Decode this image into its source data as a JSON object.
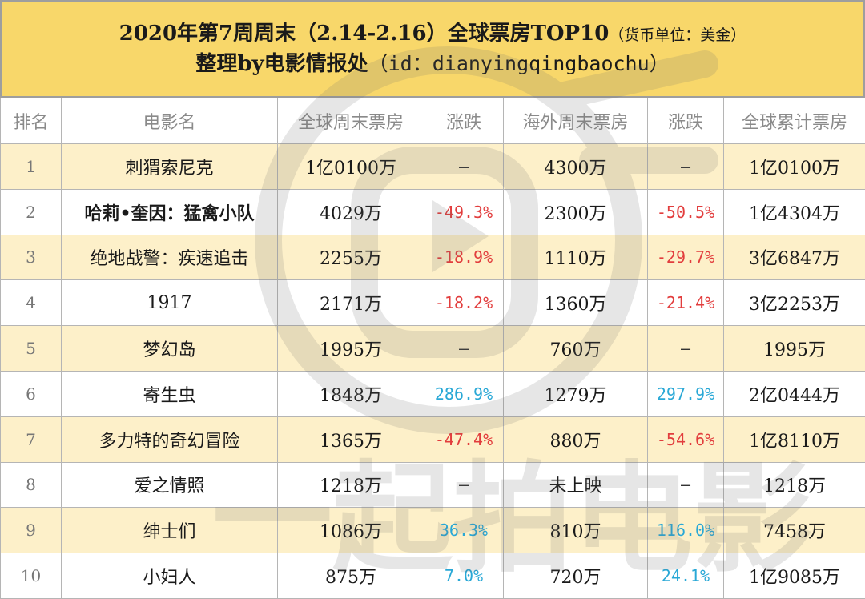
{
  "title": {
    "line1": "2020年第7周周末（2.14-2.16）全球票房TOP10",
    "unit": "（货币单位：美金）",
    "line2_prefix": "整理by电影情报处",
    "line2_id": "（id：dianyingqingbaochu）"
  },
  "columns": [
    "排名",
    "电影名",
    "全球周末票房",
    "涨跌",
    "海外周末票房",
    "涨跌",
    "全球累计票房"
  ],
  "rows": [
    {
      "rank": "1",
      "movie": "刺猬索尼克",
      "global_weekend": "1亿0100万",
      "global_change": "–",
      "overseas_weekend": "4300万",
      "overseas_change": "–",
      "global_total": "1亿0100万"
    },
    {
      "rank": "2",
      "movie": "哈莉•奎因：猛禽小队",
      "global_weekend": "4029万",
      "global_change": "-49.3%",
      "overseas_weekend": "2300万",
      "overseas_change": "-50.5%",
      "global_total": "1亿4304万"
    },
    {
      "rank": "3",
      "movie": "绝地战警：疾速追击",
      "global_weekend": "2255万",
      "global_change": "-18.9%",
      "overseas_weekend": "1110万",
      "overseas_change": "-29.7%",
      "global_total": "3亿6847万"
    },
    {
      "rank": "4",
      "movie": "1917",
      "global_weekend": "2171万",
      "global_change": "-18.2%",
      "overseas_weekend": "1360万",
      "overseas_change": "-21.4%",
      "global_total": "3亿2253万"
    },
    {
      "rank": "5",
      "movie": "梦幻岛",
      "global_weekend": "1995万",
      "global_change": "–",
      "overseas_weekend": "760万",
      "overseas_change": "–",
      "global_total": "1995万"
    },
    {
      "rank": "6",
      "movie": "寄生虫",
      "global_weekend": "1848万",
      "global_change": "286.9%",
      "overseas_weekend": "1279万",
      "overseas_change": "297.9%",
      "global_total": "2亿0444万"
    },
    {
      "rank": "7",
      "movie": "多力特的奇幻冒险",
      "global_weekend": "1365万",
      "global_change": "-47.4%",
      "overseas_weekend": "880万",
      "overseas_change": "-54.6%",
      "global_total": "1亿8110万"
    },
    {
      "rank": "8",
      "movie": "爱之情照",
      "global_weekend": "1218万",
      "global_change": "–",
      "overseas_weekend": "未上映",
      "overseas_change": "–",
      "global_total": "1218万"
    },
    {
      "rank": "9",
      "movie": "绅士们",
      "global_weekend": "1086万",
      "global_change": "36.3%",
      "overseas_weekend": "810万",
      "overseas_change": "116.0%",
      "global_total": "7458万"
    },
    {
      "rank": "10",
      "movie": "小妇人",
      "global_weekend": "875万",
      "global_change": "7.0%",
      "overseas_weekend": "720万",
      "overseas_change": "24.1%",
      "global_total": "1亿9085万"
    }
  ],
  "colors": {
    "title_bg": "#f8d76a",
    "odd_row_bg": "#fdf0c9",
    "negative": "#e23d3d",
    "positive": "#29a8d6"
  },
  "watermark": {
    "text": "一起拍电影",
    "icon": "play-button-logo-icon"
  }
}
